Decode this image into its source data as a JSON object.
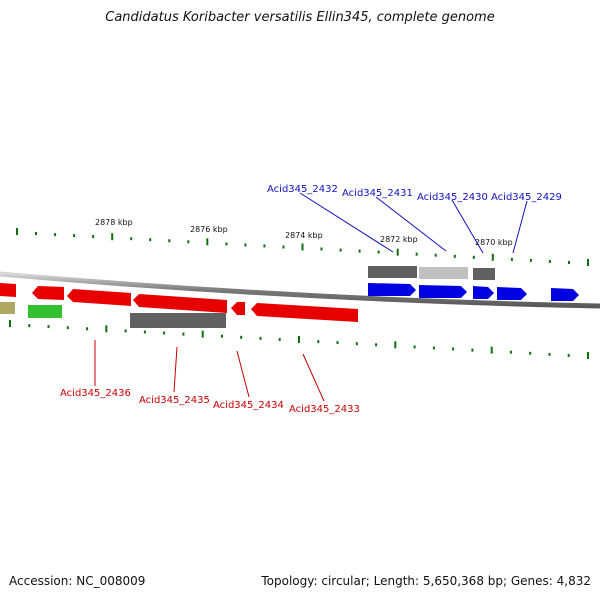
{
  "title": "Candidatus Koribacter versatilis Ellin345, complete genome",
  "footer": {
    "accession": "Accession: NC_008009",
    "summary": "Topology: circular; Length: 5,650,368 bp; Genes: 4,832"
  },
  "ruler": [
    "2878 kbp",
    "2876 kbp",
    "2874 kbp",
    "2872 kbp",
    "2870 kbp"
  ],
  "top_genes": [
    "Acid345_2432",
    "Acid345_2431",
    "Acid345_2430",
    "Acid345_2429"
  ],
  "bottom_genes": [
    "Acid345_2436",
    "Acid345_2435",
    "Acid345_2434",
    "Acid345_2433"
  ],
  "colors": {
    "forward_cds": "#0000e0",
    "reverse_cds": "#e60000",
    "rna": "#30c030",
    "pseudo": "#b0a860",
    "grey_gene": "#606060",
    "light_grey_gene": "#c0c0c0",
    "tick_green": "#107010"
  }
}
